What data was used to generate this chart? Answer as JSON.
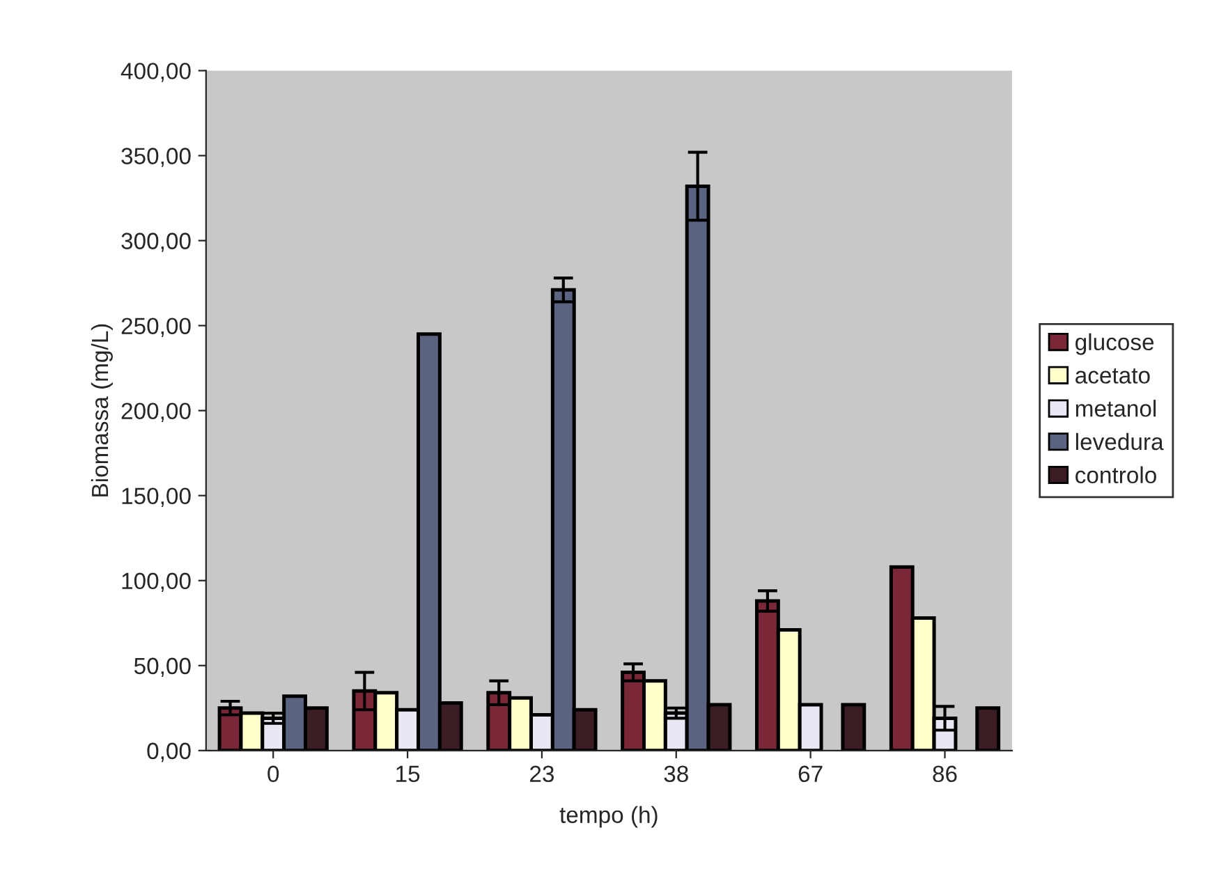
{
  "chart_data": {
    "type": "bar",
    "xlabel": "tempo (h)",
    "ylabel": "Biomassa (mg/L)",
    "categories": [
      "0",
      "15",
      "23",
      "38",
      "67",
      "86"
    ],
    "series": [
      {
        "name": "glucose",
        "color": "#7a2838",
        "values": [
          25,
          35,
          34,
          46,
          88,
          108
        ],
        "errors": [
          4,
          11,
          7,
          5,
          6,
          null
        ]
      },
      {
        "name": "acetato",
        "color": "#ffffcc",
        "values": [
          22,
          34,
          31,
          41,
          71,
          78
        ],
        "errors": [
          null,
          null,
          null,
          null,
          null,
          null
        ]
      },
      {
        "name": "metanol",
        "color": "#e8e8f4",
        "values": [
          19,
          24,
          21,
          22,
          27,
          19
        ],
        "errors": [
          3,
          null,
          null,
          3,
          null,
          7
        ]
      },
      {
        "name": "levedura",
        "color": "#5a6480",
        "values": [
          32,
          245,
          271,
          332,
          null,
          null
        ],
        "errors": [
          null,
          null,
          7,
          20,
          null,
          null
        ]
      },
      {
        "name": "controlo",
        "color": "#3a1e24",
        "values": [
          25,
          28,
          24,
          27,
          27,
          25
        ],
        "errors": [
          null,
          null,
          null,
          null,
          null,
          null
        ]
      }
    ],
    "ylim": [
      0,
      400
    ],
    "yticks": [
      {
        "value": 0,
        "label": "0,00"
      },
      {
        "value": 50,
        "label": "50,00"
      },
      {
        "value": 100,
        "label": "100,00"
      },
      {
        "value": 150,
        "label": "150,00"
      },
      {
        "value": 200,
        "label": "200,00"
      },
      {
        "value": 250,
        "label": "250,00"
      },
      {
        "value": 300,
        "label": "300,00"
      },
      {
        "value": 350,
        "label": "350,00"
      },
      {
        "value": 400,
        "label": "400,00"
      }
    ],
    "grid": false,
    "legend": "right"
  }
}
